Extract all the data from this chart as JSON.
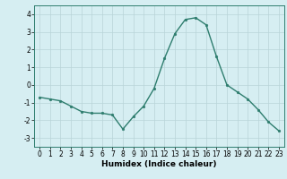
{
  "x": [
    0,
    1,
    2,
    3,
    4,
    5,
    6,
    7,
    8,
    9,
    10,
    11,
    12,
    13,
    14,
    15,
    16,
    17,
    18,
    19,
    20,
    21,
    22,
    23
  ],
  "y": [
    -0.7,
    -0.8,
    -0.9,
    -1.2,
    -1.5,
    -1.6,
    -1.6,
    -1.7,
    -2.5,
    -1.8,
    -1.2,
    -0.2,
    1.5,
    2.9,
    3.7,
    3.8,
    3.4,
    1.6,
    0.0,
    -0.4,
    -0.8,
    -1.4,
    -2.1,
    -2.6
  ],
  "line_color": "#2e7d6e",
  "marker": "o",
  "markersize": 2.0,
  "linewidth": 1.0,
  "xlabel": "Humidex (Indice chaleur)",
  "xlabel_fontsize": 6.5,
  "xlabel_fontweight": "bold",
  "ylim": [
    -3.5,
    4.5
  ],
  "yticks": [
    -3,
    -2,
    -1,
    0,
    1,
    2,
    3,
    4
  ],
  "xticks": [
    0,
    1,
    2,
    3,
    4,
    5,
    6,
    7,
    8,
    9,
    10,
    11,
    12,
    13,
    14,
    15,
    16,
    17,
    18,
    19,
    20,
    21,
    22,
    23
  ],
  "xlim": [
    -0.5,
    23.5
  ],
  "bg_color": "#d6eef2",
  "grid_color": "#b8d4d8",
  "tick_fontsize": 5.5,
  "spine_color": "#2e7d6e"
}
